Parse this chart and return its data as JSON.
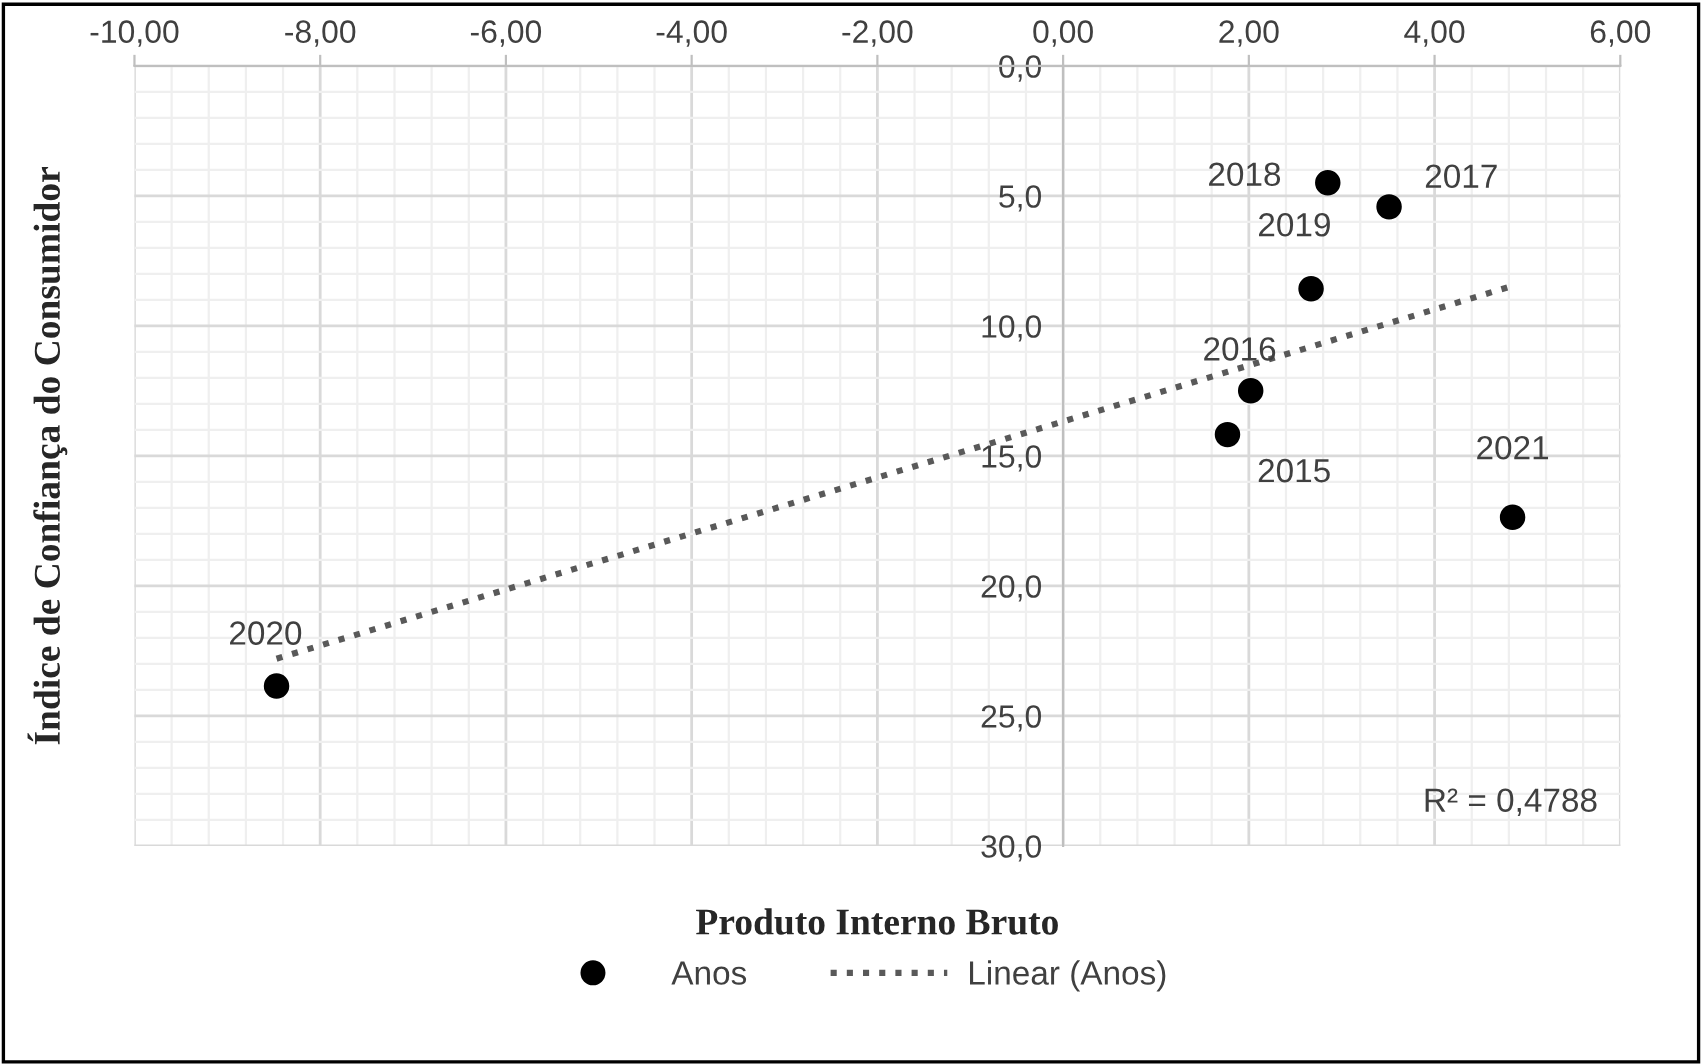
{
  "chart_data": {
    "type": "scatter",
    "xlabel": "Produto Interno Bruto",
    "ylabel": "Índice de Confiança do Consumidor",
    "series": [
      {
        "name": "Anos",
        "color": "#000000",
        "marker": "circle",
        "x": [
          1.77,
          2.02,
          3.51,
          2.85,
          2.67,
          -8.47,
          4.84
        ],
        "values": [
          14.18,
          12.49,
          5.42,
          4.49,
          8.57,
          23.85,
          17.36
        ]
      },
      {
        "name": "Linear (Anos)",
        "type": "line",
        "color": "#595959",
        "line_style": "dotted",
        "marker": "none",
        "x": [
          -8.47,
          4.84
        ],
        "values": [
          22.8,
          8.46
        ]
      }
    ],
    "annotations": [
      {
        "text": "2015",
        "x": 1.77,
        "y": 14.18
      },
      {
        "text": "2016",
        "x": 2.02,
        "y": 12.49
      },
      {
        "text": "2017",
        "x": 3.51,
        "y": 5.42
      },
      {
        "text": "2018",
        "x": 2.85,
        "y": 4.49
      },
      {
        "text": "2019",
        "x": 2.67,
        "y": 8.57
      },
      {
        "text": "2020",
        "x": -8.47,
        "y": 23.85
      },
      {
        "text": "2021",
        "x": 4.84,
        "y": 17.36
      },
      "R² = 0,4788"
    ],
    "xlim": [
      -10,
      6
    ],
    "xticks": [
      {
        "value": -10,
        "label": "-10,00"
      },
      {
        "value": -8,
        "label": "-8,00"
      },
      {
        "value": -6,
        "label": "-6,00"
      },
      {
        "value": -4,
        "label": "-4,00"
      },
      {
        "value": -2,
        "label": "-2,00"
      },
      {
        "value": 0,
        "label": "0,00"
      },
      {
        "value": 2,
        "label": "2,00"
      },
      {
        "value": 4,
        "label": "4,00"
      },
      {
        "value": 6,
        "label": "6,00"
      }
    ],
    "ylim": [
      30,
      0
    ],
    "yticks": [
      {
        "value": 0,
        "label": "0,0"
      },
      {
        "value": 5,
        "label": "5,0"
      },
      {
        "value": 10,
        "label": "10,0"
      },
      {
        "value": 15,
        "label": "15,0"
      },
      {
        "value": 20,
        "label": "20,0"
      },
      {
        "value": 25,
        "label": "25,0"
      },
      {
        "value": 30,
        "label": "30,0"
      }
    ],
    "grid": true,
    "legend": "bottom"
  }
}
